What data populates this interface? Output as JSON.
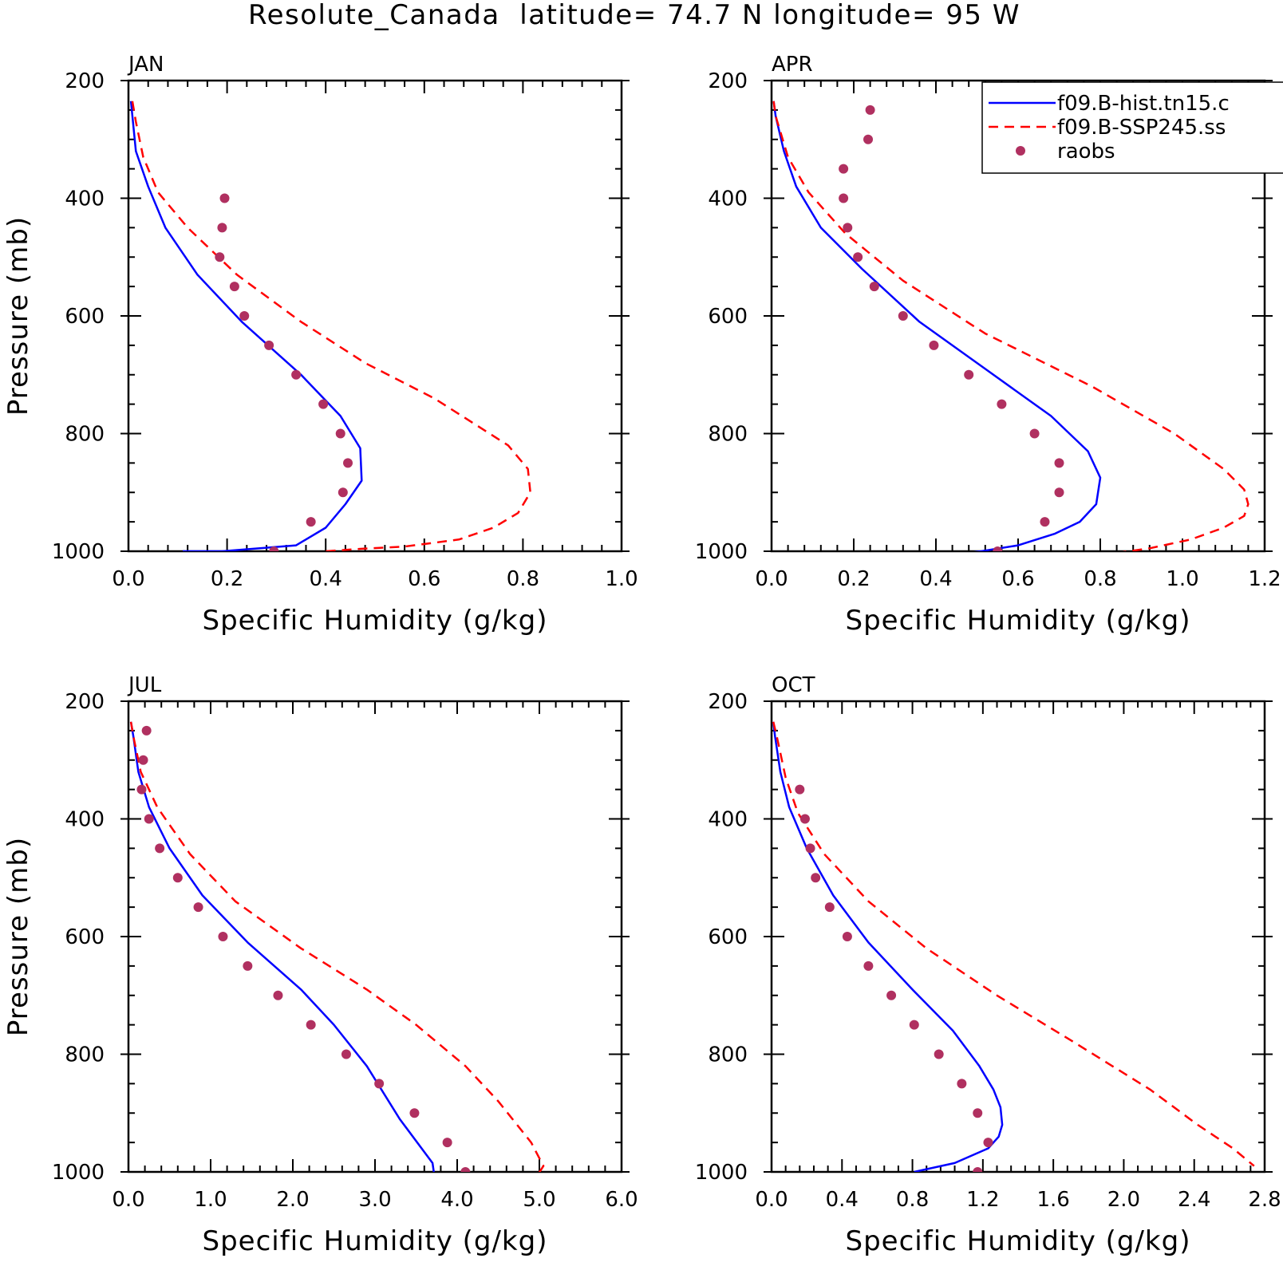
{
  "chart_data": {
    "title": "Resolute_Canada  latitude= 74.7 N longitude= 95 W",
    "legend": {
      "placement": "top-right",
      "entries": [
        {
          "label": "f09.B-hist.tn15.c",
          "style": "solid",
          "color": "#0000ff"
        },
        {
          "label": "f09.B-SSP245.ss",
          "style": "dashed",
          "color": "#ff0000"
        },
        {
          "label": "raobs",
          "style": "marker",
          "color": "#b03060"
        }
      ]
    },
    "panels": [
      {
        "type": "line",
        "label": "JAN",
        "xlabel": "Specific Humidity (g/kg)",
        "ylabel": "Pressure (mb)",
        "xlim": [
          0,
          1.0
        ],
        "ylim": [
          200,
          1000
        ],
        "xticks": [
          "0.0",
          "0.2",
          "0.4",
          "0.6",
          "0.8",
          "1.0"
        ],
        "yticks": [
          "200",
          "400",
          "600",
          "800",
          "1000"
        ],
        "series": [
          {
            "name": "f09.B-hist.tn15.c",
            "x": [
              0.005,
              0.008,
              0.015,
              0.04,
              0.075,
              0.14,
              0.23,
              0.35,
              0.43,
              0.47,
              0.473,
              0.44,
              0.4,
              0.34,
              0.19,
              0.11
            ],
            "y": [
              235,
              260,
              320,
              380,
              450,
              530,
              610,
              700,
              770,
              825,
              880,
              920,
              960,
              990,
              1000,
              1000
            ]
          },
          {
            "name": "f09.B-SSP245.ss",
            "x": [
              0.008,
              0.015,
              0.03,
              0.06,
              0.12,
              0.22,
              0.35,
              0.48,
              0.62,
              0.77,
              0.81,
              0.815,
              0.79,
              0.74,
              0.67,
              0.56,
              0.47,
              0.4
            ],
            "y": [
              235,
              270,
              330,
              390,
              450,
              530,
              610,
              680,
              740,
              820,
              860,
              900,
              935,
              960,
              980,
              992,
              996,
              1000
            ]
          },
          {
            "name": "raobs",
            "x": [
              0.195,
              0.19,
              0.185,
              0.215,
              0.235,
              0.285,
              0.34,
              0.395,
              0.43,
              0.445,
              0.435,
              0.37,
              0.295
            ],
            "y": [
              400,
              450,
              500,
              550,
              600,
              650,
              700,
              750,
              800,
              850,
              900,
              950,
              1000
            ]
          }
        ]
      },
      {
        "type": "line",
        "label": "APR",
        "xlabel": "Specific Humidity (g/kg)",
        "ylabel": "",
        "xlim": [
          0,
          1.2
        ],
        "ylim": [
          200,
          1000
        ],
        "xticks": [
          "0.0",
          "0.2",
          "0.4",
          "0.6",
          "0.8",
          "1.0",
          "1.2"
        ],
        "yticks": [
          "200",
          "400",
          "600",
          "800",
          "1000"
        ],
        "series": [
          {
            "name": "f09.B-hist.tn15.c",
            "x": [
              0.005,
              0.01,
              0.03,
              0.06,
              0.12,
              0.22,
              0.36,
              0.52,
              0.68,
              0.77,
              0.8,
              0.79,
              0.75,
              0.69,
              0.6,
              0.51,
              0.455
            ],
            "y": [
              235,
              260,
              320,
              380,
              450,
              520,
              610,
              690,
              770,
              830,
              875,
              920,
              950,
              970,
              990,
              1000,
              1005
            ]
          },
          {
            "name": "f09.B-SSP245.ss",
            "x": [
              0.005,
              0.01,
              0.04,
              0.09,
              0.18,
              0.32,
              0.52,
              0.78,
              0.98,
              1.1,
              1.15,
              1.16,
              1.15,
              1.1,
              1.02,
              0.92,
              0.82
            ],
            "y": [
              235,
              260,
              330,
              390,
              460,
              540,
              630,
              720,
              800,
              860,
              895,
              920,
              940,
              960,
              980,
              995,
              1005
            ]
          },
          {
            "name": "raobs",
            "x": [
              0.24,
              0.235,
              0.175,
              0.175,
              0.185,
              0.21,
              0.25,
              0.32,
              0.395,
              0.48,
              0.56,
              0.64,
              0.7,
              0.7,
              0.665,
              0.55
            ],
            "y": [
              250,
              300,
              350,
              400,
              450,
              500,
              550,
              600,
              650,
              700,
              750,
              800,
              850,
              900,
              950,
              1000
            ]
          }
        ]
      },
      {
        "type": "line",
        "label": "JUL",
        "xlabel": "Specific Humidity (g/kg)",
        "ylabel": "Pressure (mb)",
        "xlim": [
          0,
          6.0
        ],
        "ylim": [
          200,
          1000
        ],
        "xticks": [
          "0.0",
          "1.0",
          "2.0",
          "3.0",
          "4.0",
          "5.0",
          "6.0"
        ],
        "yticks": [
          "200",
          "400",
          "600",
          "800",
          "1000"
        ],
        "series": [
          {
            "name": "f09.B-hist.tn15.c",
            "x": [
              0.03,
              0.06,
              0.12,
              0.25,
              0.5,
              0.9,
              1.45,
              2.1,
              2.5,
              2.9,
              3.3,
              3.7,
              3.72
            ],
            "y": [
              235,
              260,
              320,
              380,
              450,
              530,
              610,
              690,
              750,
              820,
              910,
              985,
              1005
            ]
          },
          {
            "name": "f09.B-SSP245.ss",
            "x": [
              0.03,
              0.06,
              0.15,
              0.35,
              0.75,
              1.3,
              2.1,
              2.9,
              3.5,
              4.1,
              4.5,
              4.9,
              5.05,
              4.98
            ],
            "y": [
              235,
              260,
              320,
              380,
              460,
              540,
              620,
              690,
              750,
              820,
              880,
              950,
              990,
              1005
            ]
          },
          {
            "name": "raobs",
            "x": [
              0.22,
              0.18,
              0.16,
              0.25,
              0.38,
              0.6,
              0.85,
              1.15,
              1.45,
              1.82,
              2.22,
              2.65,
              3.05,
              3.48,
              3.88,
              4.1
            ],
            "y": [
              250,
              300,
              350,
              400,
              450,
              500,
              550,
              600,
              650,
              700,
              750,
              800,
              850,
              900,
              950,
              1000
            ]
          }
        ]
      },
      {
        "type": "line",
        "label": "OCT",
        "xlabel": "Specific Humidity (g/kg)",
        "ylabel": "",
        "xlim": [
          0,
          2.8
        ],
        "ylim": [
          200,
          1000
        ],
        "xticks": [
          "0.0",
          "0.4",
          "0.8",
          "1.2",
          "1.6",
          "2.0",
          "2.4",
          "2.8"
        ],
        "yticks": [
          "200",
          "400",
          "600",
          "800",
          "1000"
        ],
        "series": [
          {
            "name": "f09.B-hist.tn15.c",
            "x": [
              0.01,
              0.02,
              0.05,
              0.1,
              0.2,
              0.35,
              0.55,
              0.8,
              1.03,
              1.18,
              1.26,
              1.3,
              1.31,
              1.29,
              1.23,
              1.04,
              0.81
            ],
            "y": [
              235,
              260,
              320,
              380,
              450,
              530,
              610,
              690,
              760,
              820,
              860,
              890,
              920,
              940,
              960,
              985,
              1000
            ]
          },
          {
            "name": "f09.B-SSP245.ss",
            "x": [
              0.01,
              0.03,
              0.08,
              0.15,
              0.3,
              0.55,
              0.88,
              1.28,
              1.72,
              2.15,
              2.42,
              2.62,
              2.74
            ],
            "y": [
              235,
              260,
              330,
              390,
              460,
              540,
              620,
              700,
              780,
              860,
              920,
              960,
              990
            ]
          },
          {
            "name": "raobs",
            "x": [
              0.16,
              0.19,
              0.22,
              0.25,
              0.33,
              0.43,
              0.55,
              0.68,
              0.81,
              0.95,
              1.08,
              1.17,
              1.23,
              1.17
            ],
            "y": [
              350,
              400,
              450,
              500,
              550,
              600,
              650,
              700,
              750,
              800,
              850,
              900,
              950,
              1000
            ]
          }
        ]
      }
    ]
  }
}
